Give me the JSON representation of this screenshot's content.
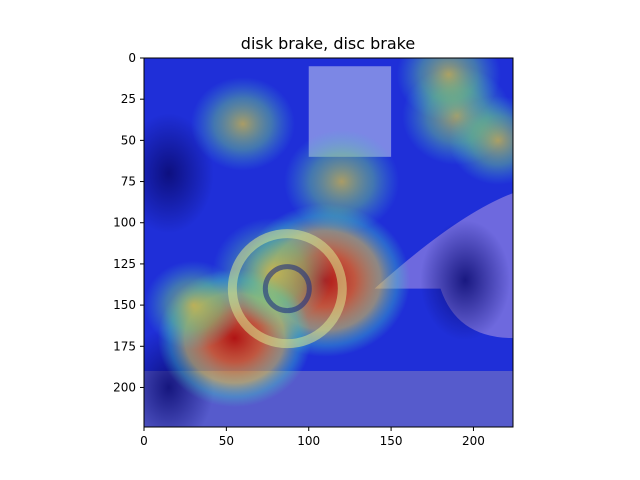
{
  "chart_data": {
    "type": "heatmap",
    "title": "disk brake, disc brake",
    "xlabel": "",
    "ylabel": "",
    "xlim": [
      0,
      224
    ],
    "ylim": [
      224,
      0
    ],
    "y_inverted": true,
    "xticks": [
      0,
      50,
      100,
      150,
      200
    ],
    "yticks": [
      0,
      25,
      50,
      75,
      100,
      125,
      150,
      175,
      200
    ],
    "grid": false,
    "colormap": "jet",
    "image_description": "Grad-CAM style heatmap overlaid on a photo of a brake rotor with a finger pointing at it; strongest activation (red) around the rotor center near x≈110, y≈135.",
    "hotspots": [
      {
        "x": 110,
        "y": 135,
        "intensity": 1.0
      },
      {
        "x": 55,
        "y": 170,
        "intensity": 0.85
      },
      {
        "x": 78,
        "y": 130,
        "intensity": 0.55
      },
      {
        "x": 190,
        "y": 35,
        "intensity": 0.45
      },
      {
        "x": 120,
        "y": 75,
        "intensity": 0.5
      },
      {
        "x": 60,
        "y": 40,
        "intensity": 0.4
      },
      {
        "x": 185,
        "y": 10,
        "intensity": 0.4
      },
      {
        "x": 30,
        "y": 150,
        "intensity": 0.35
      },
      {
        "x": 215,
        "y": 50,
        "intensity": 0.35
      }
    ],
    "cold_regions": [
      {
        "x": 15,
        "y": 70
      },
      {
        "x": 15,
        "y": 200
      },
      {
        "x": 195,
        "y": 135
      }
    ],
    "colors": {
      "base": "#1f2fd8",
      "hot": "#c41a10",
      "warm": "#f2c93a",
      "mid": "#3fc8d8"
    }
  }
}
